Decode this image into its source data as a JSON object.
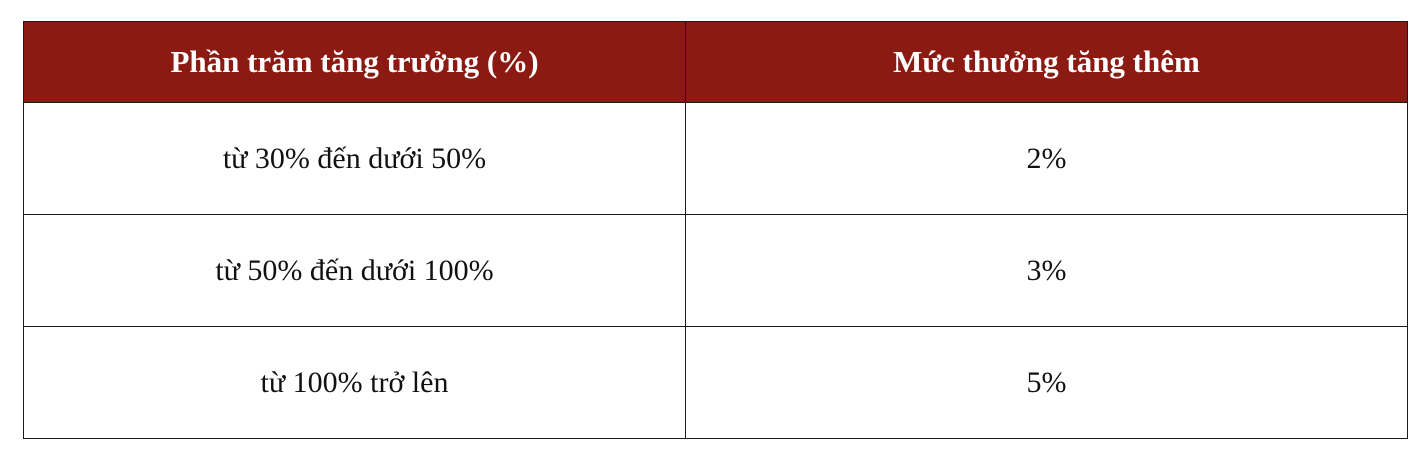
{
  "colors": {
    "header_background": "#8b1a13",
    "header_text": "#ffffff",
    "border": "#1a1a1a",
    "body_text": "#111111"
  },
  "table": {
    "headers": [
      "Phần trăm tăng trưởng (%)",
      "Mức thưởng tăng thêm"
    ],
    "rows": [
      [
        "từ 30% đến dưới 50%",
        "2%"
      ],
      [
        "từ 50% đến dưới 100%",
        "3%"
      ],
      [
        "từ 100% trở lên",
        "5%"
      ]
    ]
  }
}
